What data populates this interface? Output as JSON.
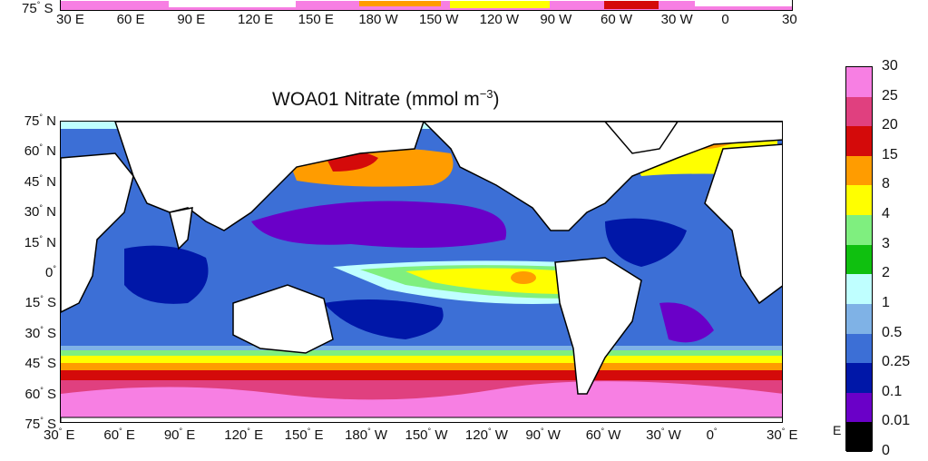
{
  "title": {
    "text_main": "WOA01 Nitrate (mmol m",
    "superscript": "−3",
    "text_close": ")"
  },
  "top_panel": {
    "y_label": "75",
    "y_label_s": "S",
    "x_ticks": [
      "30  E",
      "60  E",
      "90  E",
      "120  E",
      "150  E",
      "180  W",
      "150  W",
      "120  W",
      "90  W",
      "60  W",
      "30  W",
      "0",
      "30"
    ]
  },
  "axes": {
    "y_ticks": [
      {
        "num": "75",
        "hem": "N"
      },
      {
        "num": "60",
        "hem": "N"
      },
      {
        "num": "45",
        "hem": "N"
      },
      {
        "num": "30",
        "hem": "N"
      },
      {
        "num": "15",
        "hem": "N"
      },
      {
        "num": "0",
        "hem": ""
      },
      {
        "num": "15",
        "hem": "S"
      },
      {
        "num": "30",
        "hem": "S"
      },
      {
        "num": "45",
        "hem": "S"
      },
      {
        "num": "60",
        "hem": "S"
      },
      {
        "num": "75",
        "hem": "S"
      }
    ],
    "x_ticks": [
      {
        "num": "30",
        "hem": "E"
      },
      {
        "num": "60",
        "hem": "E"
      },
      {
        "num": "90",
        "hem": "E"
      },
      {
        "num": "120",
        "hem": "E"
      },
      {
        "num": "150",
        "hem": "E"
      },
      {
        "num": "180",
        "hem": "W"
      },
      {
        "num": "150",
        "hem": "W"
      },
      {
        "num": "120",
        "hem": "W"
      },
      {
        "num": "90",
        "hem": "W"
      },
      {
        "num": "60",
        "hem": "W"
      },
      {
        "num": "30",
        "hem": "W"
      },
      {
        "num": "0",
        "hem": ""
      },
      {
        "num": "30",
        "hem": "E"
      }
    ]
  },
  "colorbar": {
    "labels": [
      "30",
      "25",
      "20",
      "15",
      "8",
      "4",
      "3",
      "2",
      "1",
      "0.5",
      "0.25",
      "0.1",
      "0.01",
      "0"
    ],
    "colors": [
      "#f77fe3",
      "#e0407f",
      "#d40a0a",
      "#ff9c00",
      "#ffff00",
      "#7fef7f",
      "#0fc00f",
      "#bfffff",
      "#7fb2e6",
      "#3c6fd6",
      "#0017a8",
      "#6a00c8",
      "#000000"
    ],
    "stray_label": "E"
  },
  "palette": {
    "land": "#ffffff",
    "coast": "#000000"
  }
}
